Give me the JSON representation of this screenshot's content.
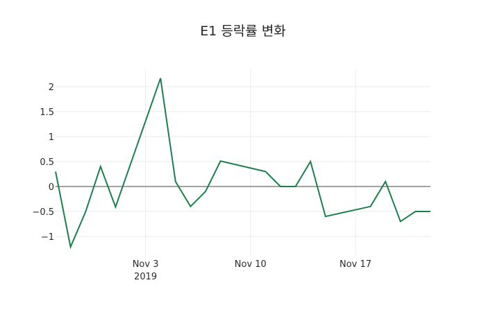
{
  "chart_data": {
    "type": "line",
    "title": "E1 등락률 변화",
    "xlabel": "",
    "ylabel": "",
    "x": [
      "2019-10-28",
      "2019-10-29",
      "2019-10-30",
      "2019-10-31",
      "2019-11-01",
      "2019-11-04",
      "2019-11-05",
      "2019-11-06",
      "2019-11-07",
      "2019-11-08",
      "2019-11-11",
      "2019-11-12",
      "2019-11-13",
      "2019-11-14",
      "2019-11-15",
      "2019-11-18",
      "2019-11-19",
      "2019-11-20",
      "2019-11-21",
      "2019-11-22"
    ],
    "series": [
      {
        "name": "E1",
        "color": "#1a7f4b",
        "values": [
          0.3,
          -1.21,
          -0.51,
          0.4,
          -0.41,
          2.17,
          0.1,
          -0.4,
          -0.1,
          0.51,
          0.3,
          0.0,
          0.0,
          0.5,
          -0.6,
          -0.4,
          0.1,
          -0.7,
          -0.5,
          -0.5
        ]
      }
    ],
    "ylim": [
      -1.3,
      2.4
    ],
    "yticks": [
      2,
      1.5,
      1,
      0.5,
      0,
      -0.5,
      -1
    ],
    "ytick_labels": [
      "2",
      "1.5",
      "1",
      "0.5",
      "0",
      "−0.5",
      "−1"
    ],
    "xticks": [
      "2019-11-03",
      "2019-11-10",
      "2019-11-17"
    ],
    "xtick_labels": [
      "Nov 3",
      "Nov 10",
      "Nov 17"
    ],
    "xtick_sublabel": "2019",
    "grid": true,
    "legend": false
  }
}
